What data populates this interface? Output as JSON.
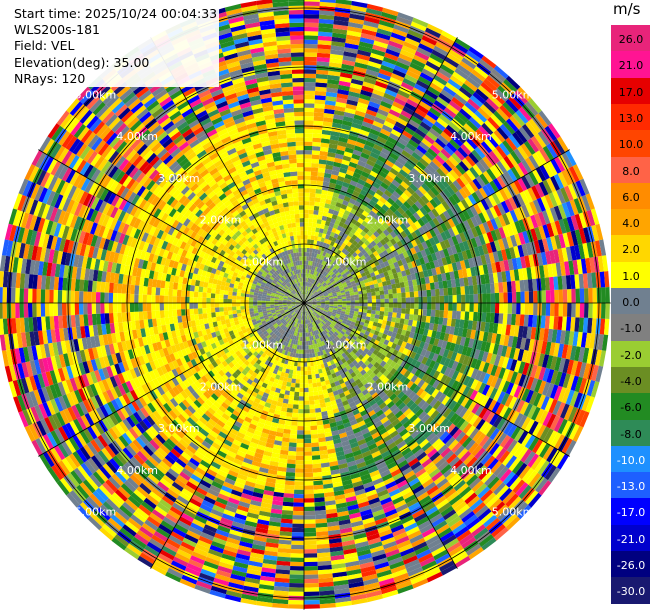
{
  "header": {
    "start_time": "Start time: 2025/10/24 00:04:33",
    "instrument": "WLS200s-181",
    "field": "Field: VEL",
    "elevation": "Elevation(deg): 35.00",
    "nrays": "NRays: 120"
  },
  "colorbar": {
    "unit": "m/s",
    "levels": [
      {
        "label": "26.0",
        "color": "#e8247a"
      },
      {
        "label": "21.0",
        "color": "#ff1493"
      },
      {
        "label": "17.0",
        "color": "#e60000"
      },
      {
        "label": "13.0",
        "color": "#ff2a00"
      },
      {
        "label": "10.0",
        "color": "#ff4500"
      },
      {
        "label": "8.0",
        "color": "#ff6347"
      },
      {
        "label": "6.0",
        "color": "#ff8c00"
      },
      {
        "label": "4.0",
        "color": "#ffa500"
      },
      {
        "label": "2.0",
        "color": "#ffd700"
      },
      {
        "label": "1.0",
        "color": "#ffff00"
      },
      {
        "label": "0.0",
        "color": "#708090"
      },
      {
        "label": "-1.0",
        "color": "#808080"
      },
      {
        "label": "-2.0",
        "color": "#9acd32"
      },
      {
        "label": "-4.0",
        "color": "#6b8e23"
      },
      {
        "label": "-6.0",
        "color": "#228b22"
      },
      {
        "label": "-8.0",
        "color": "#2e8b57"
      },
      {
        "label": "-10.0",
        "color": "#1e90ff"
      },
      {
        "label": "-13.0",
        "color": "#1e5fff"
      },
      {
        "label": "-17.0",
        "color": "#0000ff"
      },
      {
        "label": "-21.0",
        "color": "#0000cd"
      },
      {
        "label": "-26.0",
        "color": "#000080"
      },
      {
        "label": "-30.0",
        "color": "#191970"
      }
    ]
  },
  "chart_data": {
    "type": "heatmap",
    "projection": "polar PPI",
    "field": "VEL",
    "unit": "m/s",
    "nrays": 120,
    "elevation_deg": 35.0,
    "range_rings_km": [
      1,
      2,
      3,
      4,
      5
    ],
    "ring_labels": [
      "1.00km",
      "2.00km",
      "3.00km",
      "4.00km",
      "5.00km"
    ],
    "spoke_angles_deg": [
      0,
      30,
      60,
      90,
      120,
      150,
      180,
      210,
      240,
      270,
      300,
      330
    ],
    "max_range_km": 5.2,
    "velocity_pattern": {
      "inner_km": 1.0,
      "inner_values": [
        -1.0,
        0.0,
        -2.0
      ],
      "mid_km": 2.0,
      "mid_values": [
        1.0,
        2.0,
        -2.0,
        -4.0,
        0.0
      ],
      "outer_km": 3.3,
      "outer_values": [
        2.0,
        4.0,
        1.0,
        -6.0,
        -8.0,
        0.0
      ],
      "noise_values": [
        26.0,
        21.0,
        17.0,
        13.0,
        10.0,
        8.0,
        6.0,
        4.0,
        2.0,
        1.0,
        0.0,
        -1.0,
        -2.0,
        -4.0,
        -6.0,
        -8.0,
        -10.0,
        -13.0,
        -17.0,
        -21.0,
        -26.0,
        -30.0
      ]
    }
  }
}
